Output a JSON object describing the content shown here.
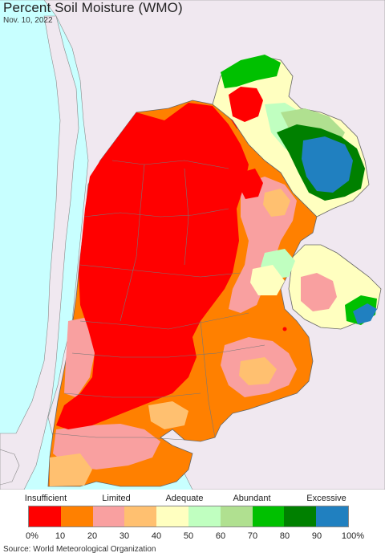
{
  "header": {
    "title": "Percent Soil Moisture (WMO)",
    "date": "Nov. 10, 2022"
  },
  "legend": {
    "categories": [
      "Insufficient",
      "Limited",
      "Adequate",
      "Abundant",
      "Excessive"
    ],
    "colors": [
      "#ff0000",
      "#ff8000",
      "#f9a0a0",
      "#ffc070",
      "#ffffc0",
      "#c0ffc0",
      "#b0e090",
      "#00c000",
      "#008000",
      "#2080c0"
    ],
    "ticks": [
      "0%",
      "10",
      "20",
      "30",
      "40",
      "50",
      "60",
      "70",
      "80",
      "90",
      "100%"
    ]
  },
  "footer": {
    "source": "Source: World Meteorological Organization"
  },
  "map": {
    "colors": {
      "ocean": "#c8ffff",
      "outside_land": "#f0e8f0",
      "border": "#777777"
    }
  }
}
